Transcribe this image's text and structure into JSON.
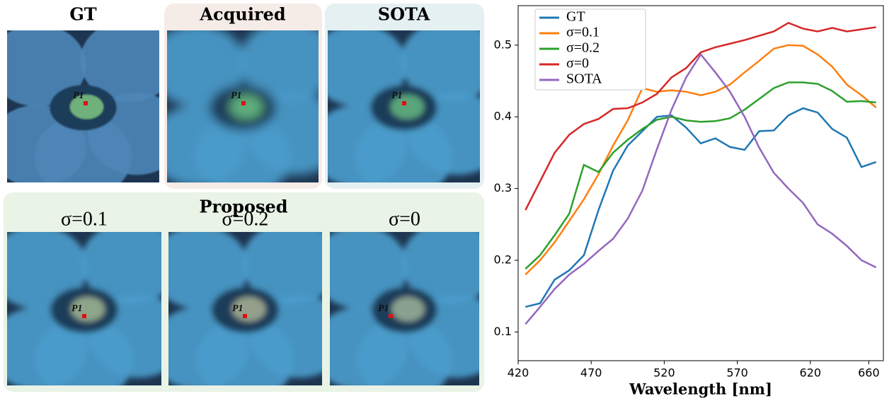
{
  "panels": {
    "images": [
      {
        "title": "GT",
        "point": "P1"
      },
      {
        "title": "Acquired",
        "point": "P1"
      },
      {
        "title": "SOTA",
        "point": "P1"
      },
      {
        "title": "σ=0.1",
        "point": "P1"
      },
      {
        "title": "σ=0.2",
        "point": "P1"
      },
      {
        "title": "σ=0",
        "point": "P1"
      }
    ],
    "group_title": "Proposed"
  },
  "chart_data": {
    "type": "line",
    "xlabel": "Wavelength [nm]",
    "x": [
      425,
      435,
      445,
      455,
      465,
      475,
      485,
      495,
      505,
      515,
      525,
      535,
      545,
      555,
      565,
      575,
      585,
      595,
      605,
      615,
      625,
      635,
      645,
      655,
      665
    ],
    "xlim": [
      420,
      670
    ],
    "xticks": [
      420,
      470,
      520,
      570,
      620,
      660
    ],
    "ylim": [
      0.06,
      0.555
    ],
    "yticks": [
      0.1,
      0.2,
      0.3,
      0.4,
      0.5
    ],
    "legend": "upper left",
    "series": [
      {
        "name": "GT",
        "color": "#1f77b4",
        "values": [
          0.135,
          0.14,
          0.173,
          0.186,
          0.207,
          0.27,
          0.325,
          0.36,
          0.38,
          0.4,
          0.402,
          0.385,
          0.363,
          0.37,
          0.358,
          0.354,
          0.38,
          0.381,
          0.402,
          0.412,
          0.406,
          0.383,
          0.371,
          0.33,
          0.337
        ]
      },
      {
        "name": "σ=0.1",
        "color": "#ff7f0e",
        "values": [
          0.18,
          0.2,
          0.225,
          0.255,
          0.285,
          0.32,
          0.36,
          0.395,
          0.44,
          0.435,
          0.437,
          0.435,
          0.43,
          0.435,
          0.445,
          0.462,
          0.478,
          0.495,
          0.5,
          0.499,
          0.487,
          0.47,
          0.445,
          0.43,
          0.413
        ]
      },
      {
        "name": "σ=0.2",
        "color": "#2ca02c",
        "values": [
          0.188,
          0.207,
          0.235,
          0.265,
          0.333,
          0.323,
          0.35,
          0.368,
          0.383,
          0.396,
          0.4,
          0.395,
          0.393,
          0.394,
          0.398,
          0.41,
          0.425,
          0.44,
          0.448,
          0.448,
          0.446,
          0.436,
          0.421,
          0.422,
          0.42
        ]
      },
      {
        "name": "σ=0",
        "color": "#d62728",
        "values": [
          0.27,
          0.31,
          0.35,
          0.375,
          0.39,
          0.397,
          0.411,
          0.412,
          0.42,
          0.432,
          0.455,
          0.468,
          0.49,
          0.497,
          0.502,
          0.507,
          0.513,
          0.519,
          0.531,
          0.523,
          0.519,
          0.524,
          0.519,
          0.522,
          0.525
        ]
      },
      {
        "name": "SOTA",
        "color": "#9467bd",
        "values": [
          0.111,
          0.135,
          0.16,
          0.18,
          0.195,
          0.213,
          0.23,
          0.258,
          0.297,
          0.355,
          0.41,
          0.455,
          0.487,
          0.462,
          0.435,
          0.4,
          0.357,
          0.322,
          0.3,
          0.28,
          0.25,
          0.237,
          0.22,
          0.2,
          0.19
        ]
      }
    ]
  }
}
